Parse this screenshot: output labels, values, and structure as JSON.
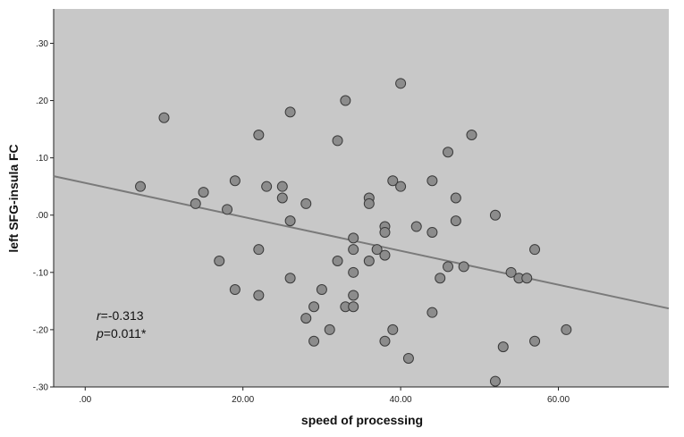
{
  "chart_data": {
    "type": "scatter",
    "xlabel": "speed of processing",
    "ylabel": "left SFG-insula  FC",
    "xlim": [
      -4,
      74
    ],
    "ylim": [
      -0.3,
      0.36
    ],
    "xticks": [
      0,
      20,
      40,
      60
    ],
    "xtick_labels": [
      ".00",
      "20.00",
      "40.00",
      "60.00"
    ],
    "yticks": [
      -0.3,
      -0.2,
      -0.1,
      0.0,
      0.1,
      0.2,
      0.3
    ],
    "ytick_labels": [
      "-.30",
      "-.20",
      "-.10",
      ".00",
      ".10",
      ".20",
      ".30"
    ],
    "grid": false,
    "background_color": "#c8c8c8",
    "marker_color": "#8c8c8c",
    "line_color": "#7a7a7a",
    "fit_line": {
      "x": [
        -4,
        74
      ],
      "y": [
        0.068,
        -0.163
      ]
    },
    "annotations": {
      "r_symbol": "r",
      "r_value": "=-0.313",
      "p_symbol": "p",
      "p_value": "=0.011*"
    },
    "points": [
      {
        "x": 7,
        "y": 0.05
      },
      {
        "x": 10,
        "y": 0.17
      },
      {
        "x": 14,
        "y": 0.02
      },
      {
        "x": 15,
        "y": 0.04
      },
      {
        "x": 17,
        "y": -0.08
      },
      {
        "x": 18,
        "y": 0.01
      },
      {
        "x": 19,
        "y": 0.06
      },
      {
        "x": 19,
        "y": -0.13
      },
      {
        "x": 22,
        "y": 0.14
      },
      {
        "x": 22,
        "y": -0.06
      },
      {
        "x": 22,
        "y": -0.14
      },
      {
        "x": 23,
        "y": 0.05
      },
      {
        "x": 25,
        "y": 0.05
      },
      {
        "x": 25,
        "y": 0.03
      },
      {
        "x": 26,
        "y": 0.18
      },
      {
        "x": 26,
        "y": -0.01
      },
      {
        "x": 26,
        "y": -0.11
      },
      {
        "x": 28,
        "y": 0.02
      },
      {
        "x": 28,
        "y": -0.18
      },
      {
        "x": 29,
        "y": -0.16
      },
      {
        "x": 29,
        "y": -0.22
      },
      {
        "x": 30,
        "y": -0.13
      },
      {
        "x": 31,
        "y": -0.2
      },
      {
        "x": 32,
        "y": 0.13
      },
      {
        "x": 32,
        "y": -0.08
      },
      {
        "x": 33,
        "y": 0.2
      },
      {
        "x": 33,
        "y": -0.16
      },
      {
        "x": 34,
        "y": -0.04
      },
      {
        "x": 34,
        "y": -0.06
      },
      {
        "x": 34,
        "y": -0.1
      },
      {
        "x": 34,
        "y": -0.14
      },
      {
        "x": 34,
        "y": -0.16
      },
      {
        "x": 36,
        "y": 0.03
      },
      {
        "x": 36,
        "y": 0.02
      },
      {
        "x": 36,
        "y": -0.08
      },
      {
        "x": 37,
        "y": -0.06
      },
      {
        "x": 38,
        "y": -0.02
      },
      {
        "x": 38,
        "y": -0.03
      },
      {
        "x": 38,
        "y": -0.07
      },
      {
        "x": 38,
        "y": -0.22
      },
      {
        "x": 39,
        "y": 0.06
      },
      {
        "x": 39,
        "y": -0.2
      },
      {
        "x": 40,
        "y": 0.23
      },
      {
        "x": 40,
        "y": 0.05
      },
      {
        "x": 41,
        "y": -0.25
      },
      {
        "x": 42,
        "y": -0.02
      },
      {
        "x": 44,
        "y": 0.06
      },
      {
        "x": 44,
        "y": -0.03
      },
      {
        "x": 44,
        "y": -0.17
      },
      {
        "x": 45,
        "y": -0.11
      },
      {
        "x": 46,
        "y": 0.11
      },
      {
        "x": 46,
        "y": -0.09
      },
      {
        "x": 47,
        "y": 0.03
      },
      {
        "x": 47,
        "y": -0.01
      },
      {
        "x": 48,
        "y": -0.09
      },
      {
        "x": 49,
        "y": 0.14
      },
      {
        "x": 52,
        "y": 0.0
      },
      {
        "x": 52,
        "y": -0.29
      },
      {
        "x": 53,
        "y": -0.23
      },
      {
        "x": 54,
        "y": -0.1
      },
      {
        "x": 55,
        "y": -0.11
      },
      {
        "x": 56,
        "y": -0.11
      },
      {
        "x": 57,
        "y": -0.06
      },
      {
        "x": 57,
        "y": -0.22
      },
      {
        "x": 61,
        "y": -0.2
      }
    ]
  }
}
